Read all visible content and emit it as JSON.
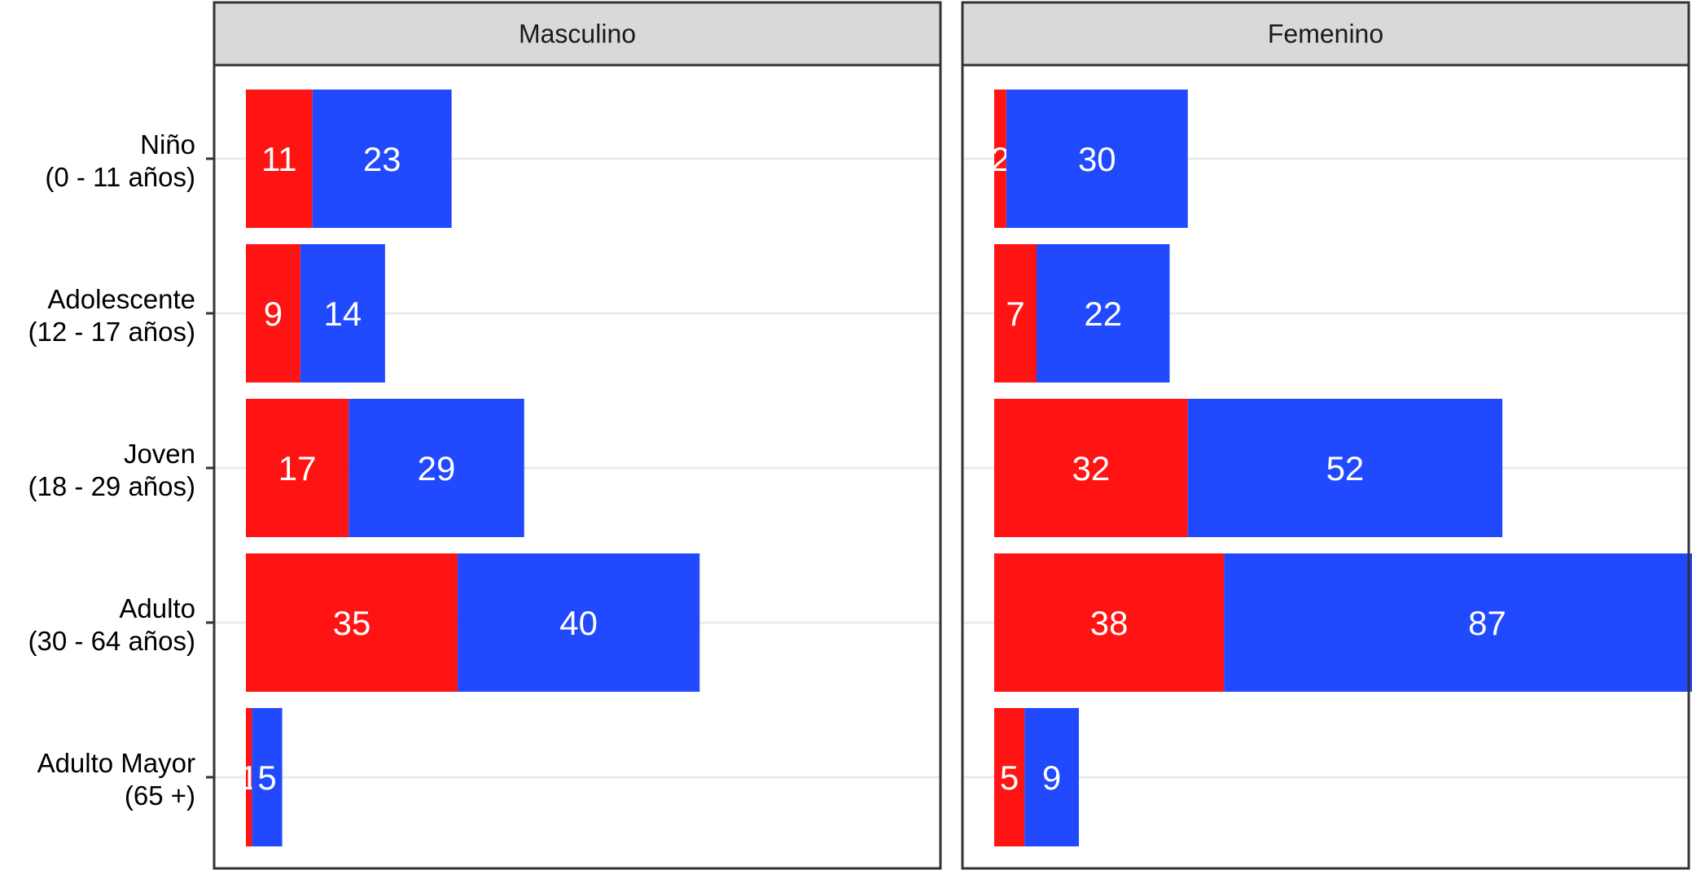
{
  "chart_data": {
    "type": "bar",
    "orientation": "horizontal",
    "stacked": true,
    "grid": "horizontal major lines only",
    "legend": "none",
    "categories": [
      [
        "Niño",
        "(0 - 11 años)"
      ],
      [
        "Adolescente",
        "(12 - 17 años)"
      ],
      [
        "Joven",
        "(18 - 29 años)"
      ],
      [
        "Adulto",
        "(30 - 64 años)"
      ],
      [
        "Adulto Mayor",
        "(65 +)"
      ]
    ],
    "series_colors": [
      "#FF1313",
      "#214AFF"
    ],
    "xlim": [
      0,
      130
    ],
    "facets": [
      {
        "title": "Masculino",
        "series": [
          {
            "values": [
              11,
              9,
              17,
              35,
              1
            ]
          },
          {
            "values": [
              23,
              14,
              29,
              40,
              5
            ]
          }
        ],
        "labels": [
          [
            "11",
            "9",
            "17",
            "35",
            "1"
          ],
          [
            "23",
            "14",
            "29",
            "40",
            "5"
          ]
        ]
      },
      {
        "title": "Femenino",
        "series": [
          {
            "values": [
              2,
              7,
              32,
              38,
              5
            ]
          },
          {
            "values": [
              30,
              22,
              52,
              87,
              9
            ]
          }
        ],
        "labels": [
          [
            "2",
            "7",
            "32",
            "38",
            "5"
          ],
          [
            "30",
            "22",
            "52",
            "87",
            "9"
          ]
        ]
      }
    ]
  }
}
